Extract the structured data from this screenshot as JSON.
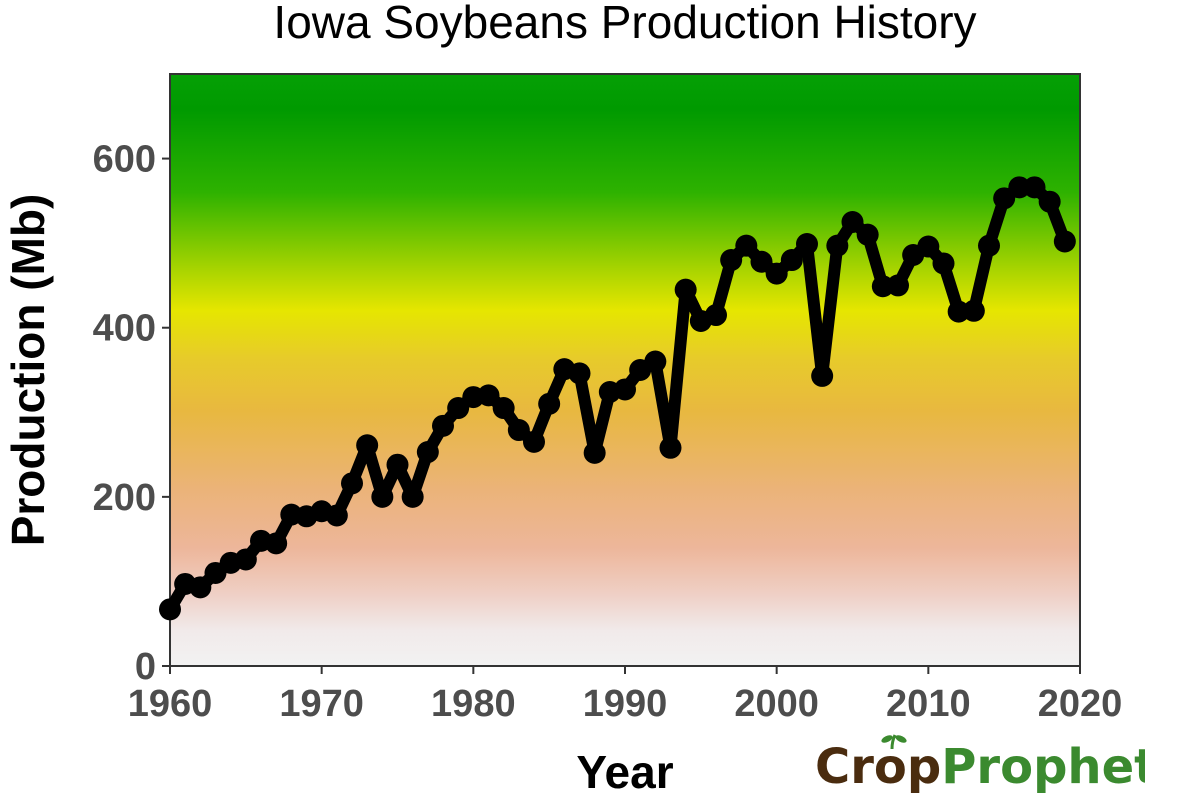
{
  "chart_data": {
    "type": "line",
    "title": "Iowa Soybeans Production History",
    "xlabel": "Year",
    "ylabel": "Production (Mb)",
    "xlim": [
      1960,
      2020
    ],
    "ylim": [
      0,
      700
    ],
    "x_ticks": [
      "1960",
      "1970",
      "1980",
      "1990",
      "2000",
      "2010",
      "2020"
    ],
    "y_ticks": [
      "0",
      "200",
      "400",
      "600"
    ],
    "grid": false,
    "background": "vertical gradient from light gray (low) through salmon, orange and yellow (~410) to green (high)",
    "series": [
      {
        "color": "#000000",
        "x": [
          1960,
          1961,
          1962,
          1963,
          1964,
          1965,
          1966,
          1967,
          1968,
          1969,
          1970,
          1971,
          1972,
          1973,
          1974,
          1975,
          1976,
          1977,
          1978,
          1979,
          1980,
          1981,
          1982,
          1983,
          1984,
          1985,
          1986,
          1987,
          1988,
          1989,
          1990,
          1991,
          1992,
          1993,
          1994,
          1995,
          1996,
          1997,
          1998,
          1999,
          2000,
          2001,
          2002,
          2003,
          2004,
          2005,
          2006,
          2007,
          2008,
          2009,
          2010,
          2011,
          2012,
          2013,
          2014,
          2015,
          2016,
          2017,
          2018,
          2019
        ],
        "y": [
          67,
          97,
          93,
          110,
          122,
          126,
          148,
          145,
          179,
          177,
          183,
          178,
          216,
          261,
          200,
          238,
          200,
          253,
          284,
          305,
          318,
          320,
          305,
          279,
          265,
          310,
          351,
          346,
          252,
          324,
          327,
          350,
          360,
          258,
          445,
          408,
          415,
          480,
          497,
          478,
          464,
          480,
          499,
          343,
          497,
          525,
          510,
          449,
          450,
          486,
          496,
          476,
          419,
          420,
          497,
          553,
          566,
          566,
          549,
          502
        ]
      }
    ]
  },
  "logo": {
    "name": "crop-prophet-logo",
    "text_crop": "Crop",
    "text_prophet": "Prophet",
    "color_crop": "#4a2c0f",
    "color_prophet": "#3b8a2f"
  },
  "colors": {
    "gradient_top": "#00a000",
    "gradient_yellow": "#e6e600",
    "gradient_orange": "#e8b840",
    "gradient_salmon": "#edb69a",
    "gradient_bottom": "#f2f2f2",
    "line": "#000000",
    "axis": "#333333"
  }
}
